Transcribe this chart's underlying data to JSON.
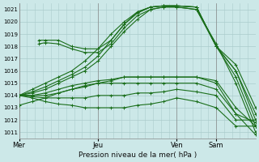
{
  "title": "",
  "xlabel": "Pression niveau de la mer( hPa )",
  "ylabel": "",
  "bg_color": "#cce8e8",
  "grid_color": "#aacccc",
  "line_color": "#1a6e1a",
  "ylim": [
    1010.5,
    1021.5
  ],
  "yticks": [
    1011,
    1012,
    1013,
    1014,
    1015,
    1016,
    1017,
    1018,
    1019,
    1020,
    1021
  ],
  "xlim": [
    0,
    180
  ],
  "day_labels": [
    "Mer",
    "Jeu",
    "Ven",
    "Sam"
  ],
  "day_positions": [
    0,
    60,
    120,
    150
  ],
  "lines": [
    {
      "x": [
        0,
        10,
        20,
        30,
        40,
        50,
        60,
        70,
        80,
        90,
        100,
        110,
        120,
        135,
        150,
        165,
        180
      ],
      "y": [
        1014.0,
        1014.2,
        1014.5,
        1015.0,
        1015.5,
        1016.0,
        1016.8,
        1018.0,
        1019.2,
        1020.2,
        1021.0,
        1021.2,
        1021.2,
        1021.0,
        1018.2,
        1015.0,
        1011.0
      ]
    },
    {
      "x": [
        0,
        10,
        20,
        30,
        40,
        50,
        60,
        70,
        80,
        90,
        100,
        110,
        120,
        135,
        150,
        165,
        180
      ],
      "y": [
        1014.0,
        1014.3,
        1014.7,
        1015.2,
        1015.7,
        1016.3,
        1017.2,
        1018.5,
        1019.8,
        1020.7,
        1021.2,
        1021.3,
        1021.3,
        1021.2,
        1018.0,
        1015.5,
        1011.5
      ]
    },
    {
      "x": [
        0,
        10,
        20,
        30,
        40,
        50,
        60,
        70,
        80,
        90,
        100,
        110,
        120,
        135,
        150,
        165,
        180
      ],
      "y": [
        1014.0,
        1014.5,
        1015.0,
        1015.5,
        1016.0,
        1016.8,
        1017.8,
        1019.0,
        1020.0,
        1020.8,
        1021.2,
        1021.3,
        1021.3,
        1021.2,
        1018.0,
        1016.0,
        1012.0
      ]
    },
    {
      "x": [
        15,
        20,
        30,
        40,
        50,
        60,
        70,
        80,
        90,
        100,
        110,
        120,
        135,
        150,
        165,
        180
      ],
      "y": [
        1018.2,
        1018.3,
        1018.2,
        1017.8,
        1017.5,
        1017.5,
        1018.2,
        1019.5,
        1020.5,
        1021.0,
        1021.2,
        1021.2,
        1021.0,
        1018.0,
        1016.0,
        1012.5
      ]
    },
    {
      "x": [
        15,
        20,
        30,
        40,
        50,
        60,
        70,
        80,
        90,
        100,
        110,
        120,
        135,
        150,
        165,
        180
      ],
      "y": [
        1018.5,
        1018.5,
        1018.5,
        1018.0,
        1017.8,
        1017.8,
        1018.5,
        1019.8,
        1020.8,
        1021.2,
        1021.3,
        1021.3,
        1021.2,
        1018.0,
        1016.5,
        1013.0
      ]
    },
    {
      "x": [
        0,
        10,
        20,
        30,
        40,
        50,
        60,
        70,
        80,
        90,
        100,
        110,
        120,
        135,
        150,
        165,
        180
      ],
      "y": [
        1013.2,
        1013.5,
        1013.8,
        1014.2,
        1014.5,
        1014.8,
        1015.0,
        1015.2,
        1015.5,
        1015.5,
        1015.5,
        1015.5,
        1015.5,
        1015.5,
        1015.0,
        1012.5,
        1010.8
      ]
    },
    {
      "x": [
        0,
        10,
        20,
        30,
        40,
        50,
        60,
        70,
        80,
        90,
        100,
        110,
        120,
        135,
        150,
        165,
        180
      ],
      "y": [
        1014.0,
        1014.0,
        1014.2,
        1014.5,
        1014.8,
        1015.0,
        1015.2,
        1015.3,
        1015.5,
        1015.5,
        1015.5,
        1015.5,
        1015.5,
        1015.5,
        1015.2,
        1013.0,
        1011.5
      ]
    },
    {
      "x": [
        0,
        10,
        20,
        30,
        40,
        50,
        60,
        70,
        80,
        90,
        100,
        110,
        120,
        135,
        150,
        165,
        180
      ],
      "y": [
        1014.0,
        1014.0,
        1014.0,
        1014.2,
        1014.5,
        1014.7,
        1015.0,
        1015.0,
        1015.0,
        1015.0,
        1015.0,
        1015.0,
        1015.0,
        1015.0,
        1014.5,
        1012.5,
        1011.8
      ]
    },
    {
      "x": [
        0,
        10,
        20,
        30,
        40,
        50,
        60,
        70,
        80,
        90,
        100,
        110,
        120,
        135,
        150,
        165,
        180
      ],
      "y": [
        1014.0,
        1013.9,
        1013.8,
        1013.8,
        1013.8,
        1013.8,
        1014.0,
        1014.0,
        1014.0,
        1014.2,
        1014.2,
        1014.3,
        1014.5,
        1014.3,
        1014.0,
        1012.0,
        1012.0
      ]
    },
    {
      "x": [
        0,
        10,
        20,
        30,
        40,
        50,
        60,
        70,
        80,
        90,
        100,
        110,
        120,
        135,
        150,
        165,
        180
      ],
      "y": [
        1014.0,
        1013.8,
        1013.5,
        1013.3,
        1013.2,
        1013.0,
        1013.0,
        1013.0,
        1013.0,
        1013.2,
        1013.3,
        1013.5,
        1013.8,
        1013.5,
        1013.0,
        1011.5,
        1011.5
      ]
    }
  ]
}
